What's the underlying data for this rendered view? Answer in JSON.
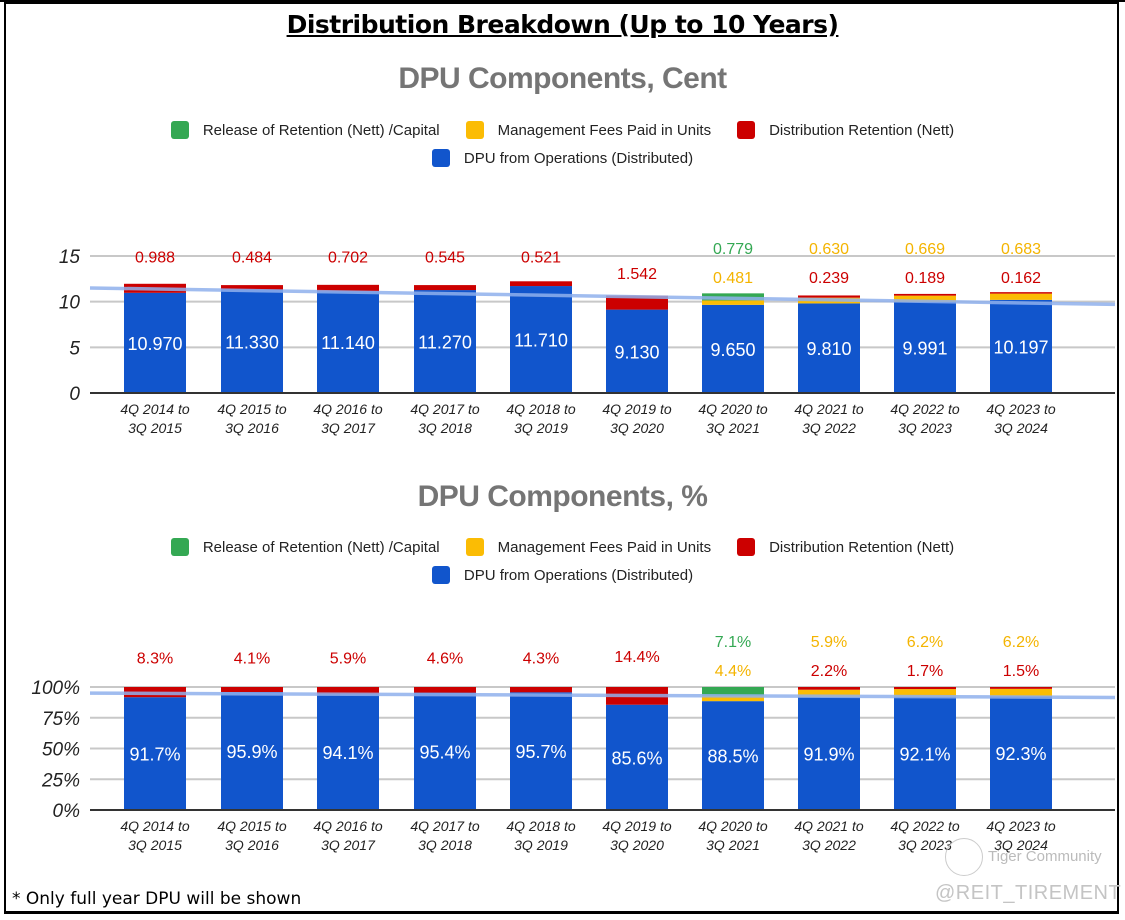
{
  "page": {
    "title": "Distribution Breakdown (Up to 10 Years)",
    "footnote": "* Only full year DPU will be shown",
    "watermark_community": "Tiger Community",
    "watermark_handle": "@REIT_TIREMENT"
  },
  "colors": {
    "release": "#34a853",
    "mgmt_fees": "#fbbc04",
    "retention": "#cc0000",
    "dpu_ops": "#1155cc",
    "trend": "#8fb0ec"
  },
  "legend": [
    {
      "key": "release",
      "label": "Release of Retention (Nett) /Capital",
      "color": "#34a853"
    },
    {
      "key": "mgmt_fees",
      "label": "Management Fees Paid in Units",
      "color": "#fbbc04"
    },
    {
      "key": "retention",
      "label": "Distribution Retention (Nett)",
      "color": "#cc0000"
    },
    {
      "key": "dpu_ops",
      "label": "DPU from Operations (Distributed)",
      "color": "#1155cc"
    }
  ],
  "chart_data": [
    {
      "type": "bar",
      "stacked": true,
      "title": "DPU Components, Cent",
      "xlabel": "",
      "ylabel": "",
      "ylim": [
        0,
        15
      ],
      "yticks": [
        "0",
        "5",
        "10",
        "15"
      ],
      "grid": true,
      "legend_position": "top",
      "categories": [
        [
          "4Q 2014 to",
          "3Q 2015"
        ],
        [
          "4Q 2015 to",
          "3Q 2016"
        ],
        [
          "4Q 2016 to",
          "3Q 2017"
        ],
        [
          "4Q 2017 to",
          "3Q 2018"
        ],
        [
          "4Q 2018 to",
          "3Q 2019"
        ],
        [
          "4Q 2019 to",
          "3Q 2020"
        ],
        [
          "4Q 2020 to",
          "3Q 2021"
        ],
        [
          "4Q 2021 to",
          "3Q 2022"
        ],
        [
          "4Q 2022 to",
          "3Q 2023"
        ],
        [
          "4Q 2023 to",
          "3Q 2024"
        ]
      ],
      "series": [
        {
          "name": "DPU from Operations (Distributed)",
          "key": "dpu_ops",
          "values": [
            10.97,
            11.33,
            11.14,
            11.27,
            11.71,
            9.13,
            9.65,
            9.81,
            9.991,
            10.197
          ],
          "labels": [
            "10.970",
            "11.330",
            "11.140",
            "11.270",
            "11.710",
            "9.130",
            "9.650",
            "9.810",
            "9.991",
            "10.197"
          ]
        },
        {
          "name": "Distribution Retention (Nett)",
          "key": "retention",
          "values": [
            0.988,
            0.484,
            0.702,
            0.545,
            0.521,
            1.542,
            0,
            0.239,
            0.189,
            0.162
          ],
          "labels": [
            "0.988",
            "0.484",
            "0.702",
            "0.545",
            "0.521",
            "1.542",
            "",
            "0.239",
            "0.189",
            "0.162"
          ]
        },
        {
          "name": "Management Fees Paid in Units",
          "key": "mgmt_fees",
          "values": [
            0,
            0,
            0,
            0,
            0,
            0,
            0.481,
            0.63,
            0.669,
            0.683
          ],
          "labels": [
            "",
            "",
            "",
            "",
            "",
            "",
            "0.481",
            "0.630",
            "0.669",
            "0.683"
          ]
        },
        {
          "name": "Release of Retention (Nett) /Capital",
          "key": "release",
          "values": [
            0,
            0,
            0,
            0,
            0,
            0,
            0.779,
            0,
            0,
            0
          ],
          "labels": [
            "",
            "",
            "",
            "",
            "",
            "",
            "0.779",
            "",
            "",
            ""
          ]
        }
      ],
      "trendline": {
        "start": 11.5,
        "end": 9.7
      }
    },
    {
      "type": "bar",
      "stacked": true,
      "title": "DPU Components, %",
      "xlabel": "",
      "ylabel": "",
      "ylim": [
        0,
        100
      ],
      "yticks": [
        "0%",
        "25%",
        "50%",
        "75%",
        "100%"
      ],
      "grid": true,
      "legend_position": "top",
      "categories": [
        [
          "4Q 2014 to",
          "3Q 2015"
        ],
        [
          "4Q 2015 to",
          "3Q 2016"
        ],
        [
          "4Q 2016 to",
          "3Q 2017"
        ],
        [
          "4Q 2017 to",
          "3Q 2018"
        ],
        [
          "4Q 2018 to",
          "3Q 2019"
        ],
        [
          "4Q 2019 to",
          "3Q 2020"
        ],
        [
          "4Q 2020 to",
          "3Q 2021"
        ],
        [
          "4Q 2021 to",
          "3Q 2022"
        ],
        [
          "4Q 2022 to",
          "3Q 2023"
        ],
        [
          "4Q 2023 to",
          "3Q 2024"
        ]
      ],
      "series": [
        {
          "name": "DPU from Operations (Distributed)",
          "key": "dpu_ops",
          "values": [
            91.7,
            95.9,
            94.1,
            95.4,
            95.7,
            85.6,
            88.5,
            91.9,
            92.1,
            92.3
          ],
          "labels": [
            "91.7%",
            "95.9%",
            "94.1%",
            "95.4%",
            "95.7%",
            "85.6%",
            "88.5%",
            "91.9%",
            "92.1%",
            "92.3%"
          ]
        },
        {
          "name": "Distribution Retention (Nett)",
          "key": "retention",
          "values": [
            8.3,
            4.1,
            5.9,
            4.6,
            4.3,
            14.4,
            0,
            2.2,
            1.7,
            1.5
          ],
          "labels": [
            "8.3%",
            "4.1%",
            "5.9%",
            "4.6%",
            "4.3%",
            "14.4%",
            "",
            "2.2%",
            "1.7%",
            "1.5%"
          ]
        },
        {
          "name": "Management Fees Paid in Units",
          "key": "mgmt_fees",
          "values": [
            0,
            0,
            0,
            0,
            0,
            0,
            4.4,
            5.9,
            6.2,
            6.2
          ],
          "labels": [
            "",
            "",
            "",
            "",
            "",
            "",
            "4.4%",
            "5.9%",
            "6.2%",
            "6.2%"
          ]
        },
        {
          "name": "Release of Retention (Nett) /Capital",
          "key": "release",
          "values": [
            0,
            0,
            0,
            0,
            0,
            0,
            7.1,
            0,
            0,
            0
          ],
          "labels": [
            "",
            "",
            "",
            "",
            "",
            "",
            "7.1%",
            "",
            "",
            ""
          ]
        }
      ],
      "trendline": {
        "start": 95,
        "end": 91.5
      }
    }
  ]
}
